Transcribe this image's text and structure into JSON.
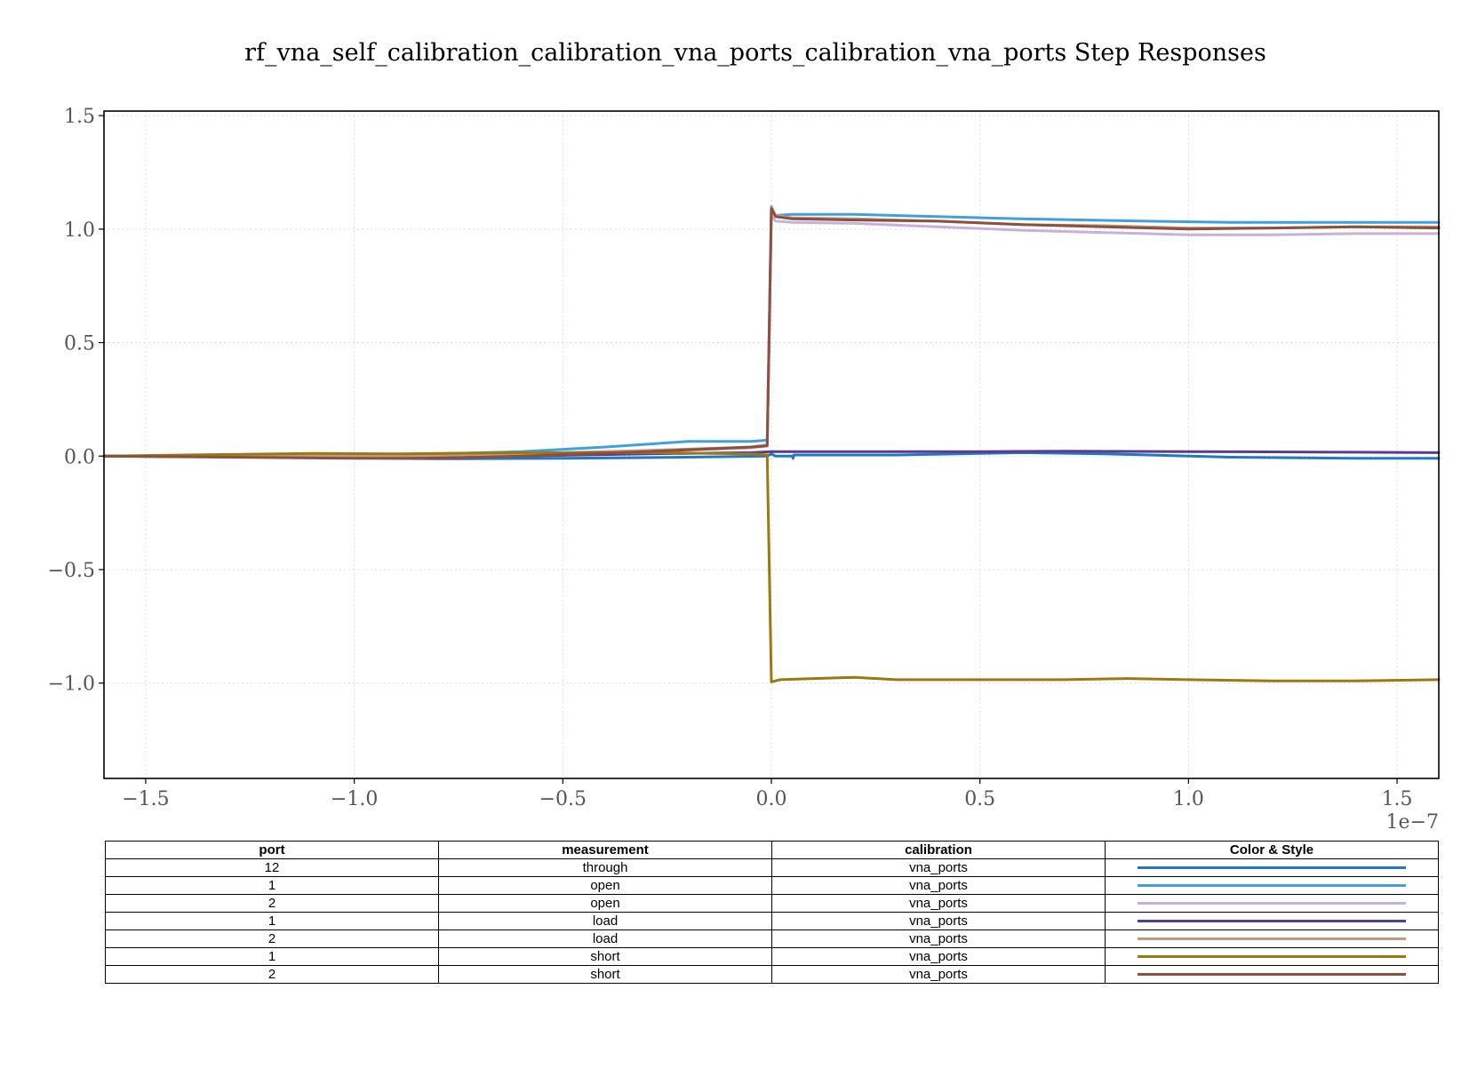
{
  "chart_data": {
    "type": "line",
    "title": "rf_vna_self_calibration_calibration_vna_ports_calibration_vna_ports Step Responses",
    "xlabel": "",
    "ylabel": "",
    "x_offset_label": "1e−7",
    "xlim": [
      -1.6,
      1.6
    ],
    "ylim": [
      -1.42,
      1.52
    ],
    "x_ticks": [
      -1.5,
      -1.0,
      -0.5,
      0.0,
      0.5,
      1.0,
      1.5
    ],
    "x_tick_labels": [
      "−1.5",
      "−1.0",
      "−0.5",
      "0.0",
      "0.5",
      "1.0",
      "1.5"
    ],
    "y_ticks": [
      1.5,
      1.0,
      0.5,
      0.0,
      -0.5,
      -1.0
    ],
    "y_tick_labels": [
      "1.5",
      "1.0",
      "0.5",
      "0.0",
      "−0.5",
      "−1.0"
    ],
    "grid": true,
    "series": [
      {
        "color": "#1f78c8",
        "points": [
          [
            -1.6,
            0.0
          ],
          [
            -1.2,
            -0.005
          ],
          [
            -0.8,
            -0.012
          ],
          [
            -0.5,
            -0.01
          ],
          [
            -0.2,
            -0.005
          ],
          [
            -0.01,
            0.0
          ],
          [
            0.0,
            0.01
          ],
          [
            0.01,
            0.0
          ],
          [
            0.05,
            0.0
          ],
          [
            0.052,
            -0.01
          ],
          [
            0.054,
            0.005
          ],
          [
            0.3,
            0.005
          ],
          [
            0.6,
            0.015
          ],
          [
            0.8,
            0.01
          ],
          [
            1.1,
            -0.005
          ],
          [
            1.4,
            -0.01
          ],
          [
            1.6,
            -0.01
          ]
        ]
      },
      {
        "color": "#3fa0e0",
        "points": [
          [
            -1.6,
            0.0
          ],
          [
            -1.2,
            0.0
          ],
          [
            -0.9,
            0.005
          ],
          [
            -0.6,
            0.02
          ],
          [
            -0.4,
            0.04
          ],
          [
            -0.2,
            0.065
          ],
          [
            -0.05,
            0.065
          ],
          [
            -0.01,
            0.07
          ],
          [
            0.0,
            1.08
          ],
          [
            0.01,
            1.06
          ],
          [
            0.05,
            1.065
          ],
          [
            0.2,
            1.065
          ],
          [
            0.4,
            1.055
          ],
          [
            0.6,
            1.045
          ],
          [
            0.9,
            1.035
          ],
          [
            1.1,
            1.03
          ],
          [
            1.3,
            1.03
          ],
          [
            1.6,
            1.03
          ]
        ]
      },
      {
        "color": "#c8b0dc",
        "points": [
          [
            -1.6,
            0.0
          ],
          [
            -1.2,
            -0.005
          ],
          [
            -0.9,
            -0.005
          ],
          [
            -0.6,
            0.005
          ],
          [
            -0.3,
            0.02
          ],
          [
            -0.05,
            0.035
          ],
          [
            -0.01,
            0.045
          ],
          [
            0.0,
            1.06
          ],
          [
            0.01,
            1.035
          ],
          [
            0.05,
            1.03
          ],
          [
            0.2,
            1.025
          ],
          [
            0.4,
            1.01
          ],
          [
            0.6,
            0.995
          ],
          [
            0.8,
            0.985
          ],
          [
            1.0,
            0.975
          ],
          [
            1.2,
            0.975
          ],
          [
            1.4,
            0.98
          ],
          [
            1.6,
            0.98
          ]
        ]
      },
      {
        "color": "#5c3a8e",
        "points": [
          [
            -1.6,
            0.0
          ],
          [
            -1.2,
            -0.005
          ],
          [
            -0.9,
            -0.008
          ],
          [
            -0.6,
            0.0
          ],
          [
            -0.3,
            0.01
          ],
          [
            -0.05,
            0.015
          ],
          [
            0.0,
            0.02
          ],
          [
            0.2,
            0.02
          ],
          [
            0.5,
            0.02
          ],
          [
            0.7,
            0.022
          ],
          [
            1.0,
            0.02
          ],
          [
            1.3,
            0.018
          ],
          [
            1.6,
            0.015
          ]
        ]
      },
      {
        "color": "#c49a7e",
        "points": [
          [
            -1.6,
            0.0
          ],
          [
            -1.2,
            0.002
          ],
          [
            -0.9,
            0.0
          ],
          [
            -0.6,
            0.01
          ],
          [
            -0.3,
            0.025
          ],
          [
            -0.05,
            0.04
          ],
          [
            -0.01,
            0.05
          ],
          [
            0.0,
            1.1
          ],
          [
            0.01,
            1.06
          ],
          [
            0.05,
            1.05
          ],
          [
            0.2,
            1.045
          ],
          [
            0.4,
            1.035
          ],
          [
            0.6,
            1.02
          ],
          [
            0.8,
            1.015
          ],
          [
            1.0,
            1.005
          ],
          [
            1.2,
            1.005
          ],
          [
            1.4,
            1.01
          ],
          [
            1.6,
            1.01
          ]
        ]
      },
      {
        "color": "#9a7a10",
        "points": [
          [
            -1.6,
            0.0
          ],
          [
            -1.4,
            0.005
          ],
          [
            -1.1,
            0.012
          ],
          [
            -0.9,
            0.01
          ],
          [
            -0.6,
            0.015
          ],
          [
            -0.3,
            0.015
          ],
          [
            -0.05,
            0.01
          ],
          [
            -0.01,
            0.005
          ],
          [
            0.0,
            -0.995
          ],
          [
            0.02,
            -0.985
          ],
          [
            0.1,
            -0.98
          ],
          [
            0.2,
            -0.975
          ],
          [
            0.3,
            -0.985
          ],
          [
            0.5,
            -0.985
          ],
          [
            0.7,
            -0.985
          ],
          [
            0.85,
            -0.98
          ],
          [
            1.0,
            -0.985
          ],
          [
            1.2,
            -0.99
          ],
          [
            1.4,
            -0.99
          ],
          [
            1.6,
            -0.985
          ]
        ]
      },
      {
        "color": "#8b5040",
        "points": [
          [
            -1.6,
            0.0
          ],
          [
            -1.3,
            -0.005
          ],
          [
            -1.0,
            -0.01
          ],
          [
            -0.8,
            -0.01
          ],
          [
            -0.6,
            0.0
          ],
          [
            -0.3,
            0.02
          ],
          [
            -0.05,
            0.04
          ],
          [
            -0.01,
            0.045
          ],
          [
            0.0,
            1.09
          ],
          [
            0.01,
            1.055
          ],
          [
            0.05,
            1.045
          ],
          [
            0.2,
            1.04
          ],
          [
            0.4,
            1.035
          ],
          [
            0.6,
            1.02
          ],
          [
            0.8,
            1.01
          ],
          [
            1.0,
            1.0
          ],
          [
            1.2,
            1.005
          ],
          [
            1.4,
            1.01
          ],
          [
            1.6,
            1.005
          ]
        ]
      }
    ]
  },
  "legend_table": {
    "headers": {
      "port": "port",
      "measurement": "measurement",
      "calibration": "calibration",
      "style": "Color & Style"
    },
    "rows": [
      {
        "port": "12",
        "measurement": "through",
        "calibration": "vna_ports",
        "color": "#1f78c8"
      },
      {
        "port": "1",
        "measurement": "open",
        "calibration": "vna_ports",
        "color": "#3fa0e0"
      },
      {
        "port": "2",
        "measurement": "open",
        "calibration": "vna_ports",
        "color": "#c8b0dc"
      },
      {
        "port": "1",
        "measurement": "load",
        "calibration": "vna_ports",
        "color": "#5c3a8e"
      },
      {
        "port": "2",
        "measurement": "load",
        "calibration": "vna_ports",
        "color": "#c49a7e"
      },
      {
        "port": "1",
        "measurement": "short",
        "calibration": "vna_ports",
        "color": "#9a7a10"
      },
      {
        "port": "2",
        "measurement": "short",
        "calibration": "vna_ports",
        "color": "#8b5040"
      }
    ]
  }
}
